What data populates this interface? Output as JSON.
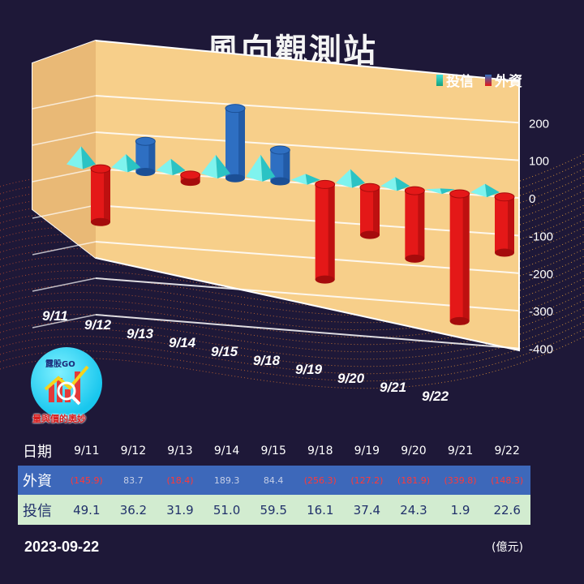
{
  "title": "風向觀測站",
  "legend": [
    {
      "label": "投信",
      "color": "#3fe0d8"
    },
    {
      "label": "外資",
      "color": "#e41818"
    }
  ],
  "chart_data": {
    "type": "bar",
    "categories": [
      "9/11",
      "9/12",
      "9/13",
      "9/14",
      "9/15",
      "9/18",
      "9/19",
      "9/20",
      "9/21",
      "9/22"
    ],
    "series": [
      {
        "name": "外資",
        "values": [
          -145.9,
          83.7,
          -18.4,
          189.3,
          84.4,
          -256.3,
          -127.2,
          -181.9,
          -339.8,
          -148.3
        ],
        "color_pos": "#2e6fc2",
        "color_neg": "#e41818"
      },
      {
        "name": "投信",
        "values": [
          49.1,
          36.2,
          31.9,
          51.0,
          59.5,
          16.1,
          37.4,
          24.3,
          1.9,
          22.6
        ],
        "color": "#3fe0d8"
      }
    ],
    "yticks": [
      "200",
      "100",
      "0",
      "-100",
      "-200",
      "-300",
      "-400"
    ],
    "ylim": [
      -400,
      200
    ],
    "grid": true
  },
  "logo": {
    "tag": "露股GO",
    "slogan": "量與價的奧妙"
  },
  "table": {
    "date_label": "日期",
    "foreign_label": "外資",
    "trust_label": "投信",
    "dates": [
      "9/11",
      "9/12",
      "9/13",
      "9/14",
      "9/15",
      "9/18",
      "9/19",
      "9/20",
      "9/21",
      "9/22"
    ],
    "foreign": [
      "(145.9)",
      "83.7",
      "(18.4)",
      "189.3",
      "84.4",
      "(256.3)",
      "(127.2)",
      "(181.9)",
      "(339.8)",
      "(148.3)"
    ],
    "trust": [
      "49.1",
      "36.2",
      "31.9",
      "51.0",
      "59.5",
      "16.1",
      "37.4",
      "24.3",
      "1.9",
      "22.6"
    ]
  },
  "date_stamp": "2023-09-22",
  "unit": "(億元)"
}
